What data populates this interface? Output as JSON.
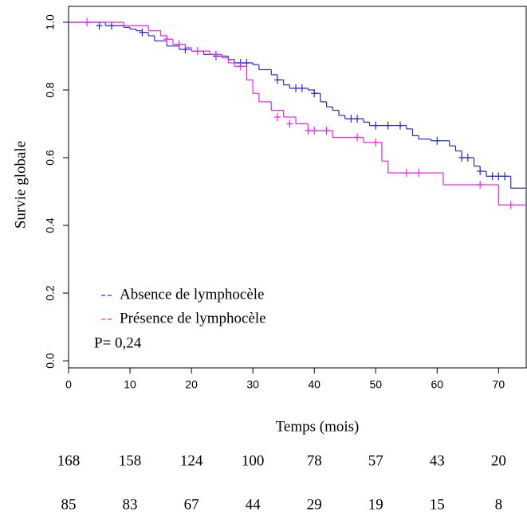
{
  "chart_data": {
    "type": "step",
    "x_label": "Temps (mois)",
    "y_label": "Survie globale",
    "annotation": "P= 0,24",
    "xlim": [
      0,
      74.5
    ],
    "ylim": [
      -0.021,
      1.047
    ],
    "xticks": [
      0,
      10,
      20,
      30,
      40,
      50,
      60,
      70
    ],
    "yticks": [
      {
        "value": 0,
        "label": "0.0"
      },
      0.2,
      0.4,
      0.6,
      0.8,
      {
        "value": 1,
        "label": "1.0"
      }
    ],
    "series": [
      {
        "name": "Absence de lymphocèle",
        "color": "#2b2bd0",
        "x": [
          0,
          6,
          9,
          10,
          11,
          12,
          13,
          14,
          16,
          18,
          20,
          22,
          24,
          26,
          27,
          30,
          31,
          33,
          34,
          35,
          36,
          39,
          40,
          41,
          42,
          43,
          44,
          45,
          48,
          49,
          55,
          56,
          57,
          59,
          62,
          63,
          64,
          66,
          67,
          68,
          72,
          74.5
        ],
        "values": [
          1.0,
          0.99,
          0.985,
          0.98,
          0.975,
          0.97,
          0.96,
          0.945,
          0.93,
          0.92,
          0.915,
          0.905,
          0.9,
          0.89,
          0.88,
          0.875,
          0.86,
          0.845,
          0.83,
          0.815,
          0.805,
          0.8,
          0.79,
          0.765,
          0.75,
          0.74,
          0.725,
          0.715,
          0.705,
          0.695,
          0.685,
          0.665,
          0.655,
          0.65,
          0.635,
          0.62,
          0.6,
          0.575,
          0.56,
          0.545,
          0.51,
          0.51
        ],
        "censor_x": [
          5,
          7,
          12,
          19,
          24,
          28,
          29,
          34,
          37,
          38,
          40,
          46,
          47,
          50,
          52,
          54,
          60,
          64,
          65,
          67,
          69,
          70,
          71
        ],
        "censor_values": [
          0.99,
          0.99,
          0.97,
          0.92,
          0.9,
          0.88,
          0.88,
          0.83,
          0.805,
          0.805,
          0.79,
          0.715,
          0.715,
          0.695,
          0.695,
          0.695,
          0.65,
          0.6,
          0.6,
          0.56,
          0.545,
          0.545,
          0.545
        ],
        "at_risk_color": "#6a6ae6",
        "at_risk": [
          168,
          158,
          124,
          100,
          78,
          57,
          43,
          20
        ]
      },
      {
        "name": "Présence de lymphocèle",
        "color": "#ee22ee",
        "x": [
          0,
          9,
          13,
          15,
          16,
          17,
          19,
          20,
          23,
          25,
          26,
          27,
          29,
          30,
          31,
          33,
          35,
          37,
          39,
          43,
          48,
          51,
          52,
          61,
          70,
          74.5
        ],
        "values": [
          1.0,
          0.99,
          0.975,
          0.96,
          0.95,
          0.935,
          0.925,
          0.915,
          0.905,
          0.895,
          0.88,
          0.87,
          0.83,
          0.79,
          0.765,
          0.74,
          0.72,
          0.7,
          0.68,
          0.66,
          0.645,
          0.59,
          0.555,
          0.52,
          0.46,
          0.46
        ],
        "censor_x": [
          3,
          16,
          18,
          21,
          24,
          28,
          34,
          36,
          39,
          40,
          42,
          47,
          50,
          55,
          57,
          67,
          72
        ],
        "censor_values": [
          1.0,
          0.95,
          0.935,
          0.915,
          0.905,
          0.87,
          0.72,
          0.7,
          0.68,
          0.68,
          0.68,
          0.66,
          0.645,
          0.555,
          0.555,
          0.52,
          0.46
        ],
        "at_risk_color": "#ff00ff",
        "at_risk": [
          85,
          83,
          67,
          44,
          29,
          19,
          15,
          8
        ]
      }
    ]
  }
}
